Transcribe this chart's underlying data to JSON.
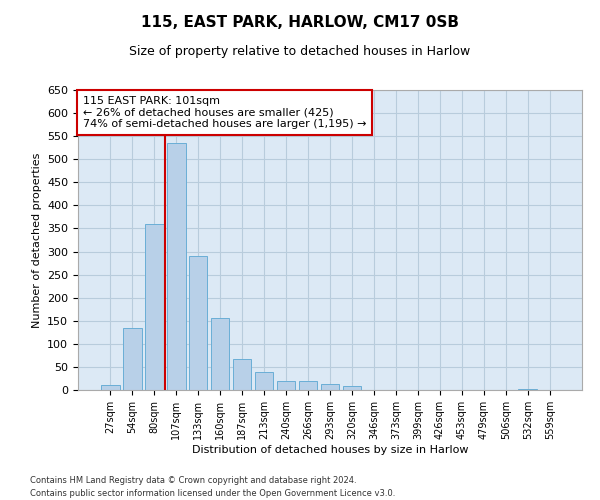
{
  "title1": "115, EAST PARK, HARLOW, CM17 0SB",
  "title2": "Size of property relative to detached houses in Harlow",
  "xlabel": "Distribution of detached houses by size in Harlow",
  "ylabel": "Number of detached properties",
  "categories": [
    "27sqm",
    "54sqm",
    "80sqm",
    "107sqm",
    "133sqm",
    "160sqm",
    "187sqm",
    "213sqm",
    "240sqm",
    "266sqm",
    "293sqm",
    "320sqm",
    "346sqm",
    "373sqm",
    "399sqm",
    "426sqm",
    "453sqm",
    "479sqm",
    "506sqm",
    "532sqm",
    "559sqm"
  ],
  "bar_values": [
    10,
    135,
    360,
    535,
    290,
    157,
    67,
    40,
    20,
    20,
    13,
    8,
    0,
    0,
    0,
    0,
    0,
    0,
    0,
    2,
    0
  ],
  "bar_color": "#b8d0e8",
  "bar_edge_color": "#6aaed6",
  "vline_x": 2.5,
  "vline_color": "#cc0000",
  "annotation_text": "115 EAST PARK: 101sqm\n← 26% of detached houses are smaller (425)\n74% of semi-detached houses are larger (1,195) →",
  "annotation_box_color": "#ffffff",
  "annotation_box_edge": "#cc0000",
  "ylim": [
    0,
    650
  ],
  "yticks": [
    0,
    50,
    100,
    150,
    200,
    250,
    300,
    350,
    400,
    450,
    500,
    550,
    600,
    650
  ],
  "ax_facecolor": "#dce9f5",
  "background_color": "#ffffff",
  "grid_color": "#b8ccdc",
  "footer_line1": "Contains HM Land Registry data © Crown copyright and database right 2024.",
  "footer_line2": "Contains public sector information licensed under the Open Government Licence v3.0."
}
